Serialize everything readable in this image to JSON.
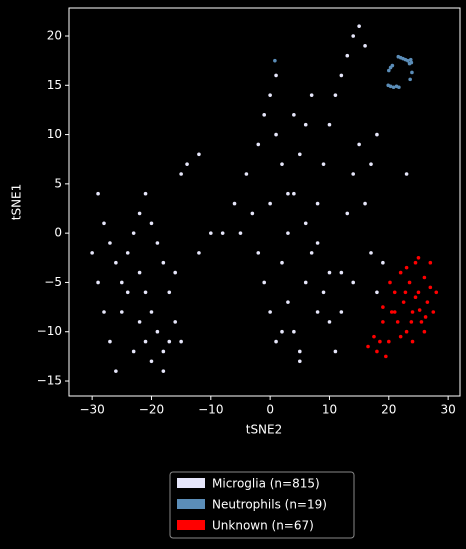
{
  "chart_data": {
    "type": "scatter",
    "x_label": "tSNE2",
    "y_label": "tSNE1",
    "xlim": [
      -33.9,
      32.0
    ],
    "ylim": [
      -16.52,
      22.84
    ],
    "xticks": [
      {
        "value": -30,
        "label": "−30"
      },
      {
        "value": -20,
        "label": "−20"
      },
      {
        "value": -10,
        "label": "−10"
      },
      0,
      10,
      20,
      30
    ],
    "yticks": [
      {
        "value": -15,
        "label": "−15"
      },
      {
        "value": -10,
        "label": "−10"
      },
      {
        "value": -5,
        "label": "−5"
      },
      0,
      5,
      10,
      15,
      20
    ],
    "legend": "lower center",
    "series": [
      {
        "name": "Microglia (n=815)",
        "color": "#e6e6fa",
        "x": [
          -29,
          -28,
          -27,
          -26,
          -25,
          -24,
          -23,
          -22,
          -21,
          -20,
          -19,
          -18,
          -17,
          -16,
          -22,
          -21,
          -20,
          -18,
          -17,
          -25,
          -27,
          -28,
          -30,
          -26,
          -23,
          -20,
          -18,
          -15,
          -16,
          -19,
          -24,
          -22,
          -21,
          -29,
          -4,
          -3,
          -2,
          -1,
          0,
          1,
          2,
          3,
          4,
          5,
          6,
          7,
          8,
          9,
          10,
          11,
          12,
          13,
          14,
          15,
          16,
          17,
          18,
          0,
          1,
          2,
          -1,
          3,
          4,
          5,
          6,
          7,
          8,
          9,
          10,
          11,
          12,
          13,
          14,
          15,
          16,
          -5,
          -6,
          -8,
          -10,
          -12,
          -15,
          -14,
          -12,
          5,
          19,
          17,
          18,
          23,
          2,
          8,
          10,
          12,
          14,
          6,
          3,
          0,
          -2,
          1,
          4
        ],
        "values": [
          4,
          1,
          -1,
          -3,
          -5,
          -2,
          0,
          -4,
          -6,
          -8,
          -10,
          -12,
          -11,
          -9,
          2,
          4,
          1,
          -3,
          -6,
          -8,
          -11,
          -8,
          -2,
          -14,
          -12,
          -13,
          -14,
          -11,
          -4,
          -1,
          -6,
          -9,
          -11,
          -5,
          6,
          2,
          -2,
          -5,
          -8,
          -11,
          -3,
          0,
          4,
          8,
          11,
          14,
          -1,
          -6,
          -9,
          -12,
          -4,
          2,
          6,
          9,
          3,
          -2,
          -6,
          14,
          10,
          7,
          12,
          -7,
          -10,
          -12,
          -5,
          -2,
          3,
          7,
          11,
          14,
          16,
          18,
          20,
          21,
          19,
          0,
          3,
          0,
          0,
          -2,
          6,
          7,
          8,
          -13,
          -3,
          7,
          10,
          6,
          -10,
          -8,
          -4,
          -8,
          -5,
          1,
          4,
          3,
          9,
          16,
          12
        ]
      },
      {
        "name": "Neutrophils (n=19)",
        "color": "#5b8db8",
        "x": [
          0.8,
          19.9,
          20.3,
          20.8,
          21.3,
          21.7,
          20,
          20.3,
          20.6,
          21.6,
          22,
          22.4,
          22.8,
          23.2,
          23.5,
          23.7,
          23.9,
          23.6,
          23.8
        ],
        "values": [
          17.5,
          15,
          14.9,
          14.8,
          14.9,
          14.8,
          16.5,
          16.8,
          17,
          17.9,
          17.8,
          17.7,
          17.6,
          17.5,
          17.2,
          17.6,
          16.3,
          15.6,
          17.3
        ]
      },
      {
        "name": "Unknown (n=67)",
        "color": "#ff0000",
        "x": [
          16.5,
          17.5,
          18,
          18.5,
          19,
          19.5,
          20,
          20.5,
          21,
          21.5,
          22,
          22.5,
          23,
          23.5,
          24,
          24.5,
          25,
          25.5,
          26,
          26.5,
          27,
          27.5,
          28,
          22,
          23,
          24,
          25,
          26,
          27,
          21,
          22.8,
          24.5,
          25.2,
          23.8,
          26.2,
          20.2,
          19
        ],
        "values": [
          -11.5,
          -10.5,
          -12,
          -11,
          -9,
          -12.5,
          -11,
          -8,
          -6,
          -9,
          -4,
          -7,
          -10,
          -5,
          -8,
          -3,
          -6,
          -9,
          -4.5,
          -7,
          -5.5,
          -8,
          -6,
          -10.5,
          -3.5,
          -11,
          -2.5,
          -10,
          -3,
          -8,
          -6,
          -6.5,
          -7.8,
          -9,
          -8.5,
          -5,
          -7.5
        ]
      }
    ]
  }
}
